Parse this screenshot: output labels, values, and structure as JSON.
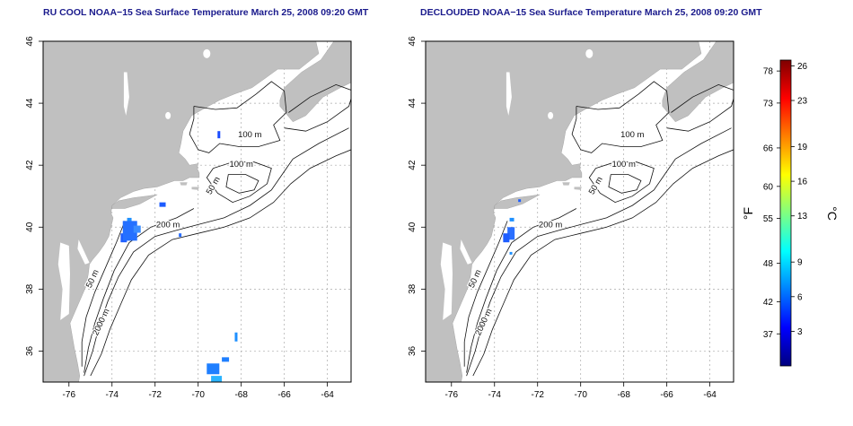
{
  "panels": [
    {
      "title": "RU COOL NOAA−15 Sea Surface Temperature March 25, 2008 09:20 GMT"
    },
    {
      "title": "DECLOUDED NOAA−15 Sea Surface Temperature March 25, 2008 09:20 GMT"
    }
  ],
  "axes": {
    "lon_ticks": [
      "-76",
      "-74",
      "-72",
      "-70",
      "-68",
      "-66",
      "-64"
    ],
    "lat_ticks": [
      "36",
      "38",
      "40",
      "42",
      "44",
      "46"
    ],
    "lon_range": [
      -77.2,
      -62.9
    ],
    "lat_range": [
      35.0,
      46.0
    ]
  },
  "contour_labels": {
    "left": [
      "100 m",
      "100 m",
      "50 m",
      "200 m",
      "50 m",
      "2000 m"
    ],
    "right": [
      "100 m",
      "100 m",
      "50 m",
      "200 m",
      "50 m",
      "2000 m"
    ]
  },
  "colorbar": {
    "unit_f": "°F",
    "unit_c": "°C",
    "f_ticks": [
      "78",
      "73",
      "66",
      "60",
      "55",
      "48",
      "42",
      "37"
    ],
    "c_ticks": [
      "26",
      "23",
      "19",
      "16",
      "13",
      "9",
      "6",
      "3"
    ],
    "range_c": [
      0,
      26.5
    ],
    "colors": [
      "#00007f",
      "#0000ff",
      "#0080ff",
      "#00ffff",
      "#80ff80",
      "#ffff00",
      "#ff8000",
      "#ff0000",
      "#7f0000"
    ]
  },
  "colors": {
    "land": "#c0c0c0",
    "ocean": "#ffffff",
    "title": "#1a1a8c"
  }
}
